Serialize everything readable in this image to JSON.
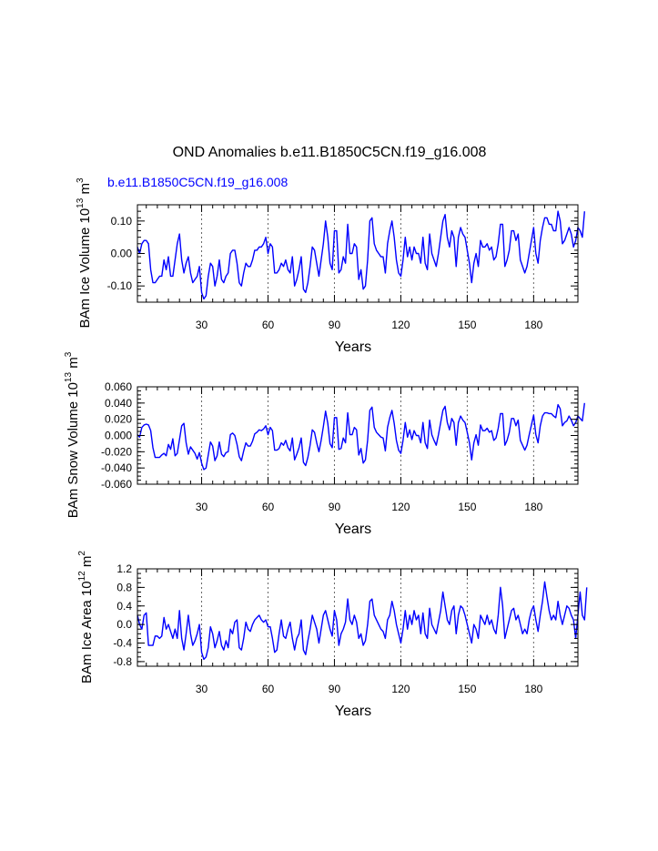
{
  "title": "OND Anomalies b.e11.B1850C5CN.f19_g16.008",
  "subtitle": "b.e11.B1850C5CN.f19_g16.008",
  "colors": {
    "series": "#0000ff",
    "refline": "#666666",
    "axis": "#000000"
  },
  "chart_data": [
    {
      "type": "line",
      "ylabel_main": "BAm Ice Volume 10",
      "ylabel_exp": "13",
      "ylabel_unit": " m",
      "ylabel_unit_exp": "3",
      "xlabel": "Years",
      "xlim": [
        1,
        200
      ],
      "ylim": [
        -0.15,
        0.15
      ],
      "yticks": [
        -0.1,
        0.0,
        0.1
      ],
      "ytick_labels": [
        "-0.10",
        "0.00",
        "0.10"
      ],
      "yminor_step": 0.02,
      "xticks": [
        30,
        60,
        90,
        120,
        150,
        180
      ],
      "xtick_labels": [
        "30",
        "60",
        "90",
        "120",
        "150",
        "180"
      ],
      "refline_x": [
        30,
        60,
        90,
        120,
        150,
        180
      ],
      "series": [
        {
          "name": "Ice Volume",
          "values": [
            0.02,
            0.0,
            0.03,
            0.04,
            0.04,
            0.03,
            -0.05,
            -0.09,
            -0.09,
            -0.08,
            -0.07,
            -0.07,
            -0.02,
            -0.05,
            -0.01,
            -0.07,
            -0.07,
            -0.02,
            0.03,
            0.06,
            -0.02,
            -0.06,
            -0.03,
            -0.01,
            -0.06,
            -0.09,
            -0.08,
            -0.07,
            -0.04,
            -0.12,
            -0.14,
            -0.13,
            -0.07,
            -0.03,
            -0.04,
            -0.1,
            -0.07,
            -0.02,
            -0.08,
            -0.09,
            -0.07,
            -0.06,
            0.0,
            0.01,
            0.01,
            -0.03,
            -0.09,
            -0.1,
            -0.06,
            -0.03,
            -0.04,
            -0.04,
            -0.02,
            0.01,
            0.01,
            0.02,
            0.02,
            0.03,
            0.05,
            0.0,
            0.03,
            0.02,
            -0.06,
            -0.06,
            -0.05,
            -0.03,
            -0.04,
            -0.02,
            -0.05,
            -0.06,
            -0.01,
            -0.1,
            -0.08,
            -0.05,
            -0.01,
            -0.11,
            -0.12,
            -0.09,
            -0.04,
            0.02,
            0.01,
            -0.03,
            -0.07,
            -0.02,
            0.03,
            0.1,
            0.05,
            -0.03,
            -0.05,
            0.07,
            0.07,
            -0.06,
            -0.05,
            -0.01,
            -0.03,
            0.09,
            0.0,
            0.0,
            0.03,
            0.02,
            -0.08,
            -0.05,
            -0.11,
            -0.1,
            -0.02,
            0.1,
            0.11,
            0.03,
            0.01,
            0.0,
            -0.01,
            -0.01,
            -0.06,
            0.03,
            0.07,
            0.1,
            0.05,
            -0.02,
            -0.06,
            -0.07,
            -0.02,
            0.05,
            -0.01,
            0.02,
            -0.02,
            0.02,
            0.0,
            0.0,
            -0.03,
            0.05,
            -0.03,
            -0.05,
            0.06,
            0.0,
            -0.02,
            -0.04,
            0.0,
            0.05,
            0.1,
            0.12,
            0.05,
            0.02,
            0.07,
            0.05,
            -0.04,
            0.05,
            0.08,
            0.06,
            0.05,
            0.01,
            -0.03,
            -0.09,
            -0.03,
            0.0,
            -0.04,
            0.04,
            0.02,
            0.02,
            0.03,
            0.01,
            0.02,
            -0.02,
            -0.01,
            0.03,
            0.09,
            0.09,
            -0.04,
            -0.02,
            0.01,
            0.07,
            0.07,
            0.04,
            0.06,
            -0.02,
            -0.04,
            -0.06,
            -0.04,
            0.0,
            0.04,
            0.08,
            0.0,
            -0.03,
            0.04,
            0.08,
            0.11,
            0.11,
            0.09,
            0.09,
            0.07,
            0.07,
            0.13,
            0.1,
            0.03,
            0.04,
            0.06,
            0.08,
            0.06,
            0.02,
            0.04,
            0.08,
            0.07,
            0.05,
            0.13
          ]
        }
      ]
    },
    {
      "type": "line",
      "ylabel_main": "BAm Snow Volume 10",
      "ylabel_exp": "13",
      "ylabel_unit": " m",
      "ylabel_unit_exp": "3",
      "xlabel": "Years",
      "xlim": [
        1,
        200
      ],
      "ylim": [
        -0.06,
        0.06
      ],
      "yticks": [
        -0.06,
        -0.04,
        -0.02,
        0.0,
        0.02,
        0.04,
        0.06
      ],
      "ytick_labels": [
        "-0.060",
        "-0.040",
        "-0.020",
        "0.000",
        "0.020",
        "0.040",
        "0.060"
      ],
      "yminor_step": 0.005,
      "xticks": [
        30,
        60,
        90,
        120,
        150,
        180
      ],
      "xtick_labels": [
        "30",
        "60",
        "90",
        "120",
        "150",
        "180"
      ],
      "refline_x": [
        30,
        60,
        90,
        120,
        150,
        180
      ],
      "series": [
        {
          "name": "Snow Volume",
          "values": [
            0.001,
            -0.002,
            0.01,
            0.013,
            0.014,
            0.013,
            0.006,
            -0.015,
            -0.027,
            -0.027,
            -0.027,
            -0.024,
            -0.022,
            -0.025,
            -0.011,
            -0.017,
            -0.004,
            -0.025,
            -0.022,
            -0.005,
            0.012,
            0.015,
            -0.009,
            -0.023,
            -0.014,
            -0.018,
            -0.022,
            -0.029,
            -0.021,
            -0.034,
            -0.042,
            -0.04,
            -0.024,
            -0.008,
            -0.013,
            -0.031,
            -0.025,
            -0.008,
            -0.023,
            -0.026,
            -0.021,
            -0.02,
            0.001,
            0.003,
            0.0,
            -0.011,
            -0.026,
            -0.031,
            -0.019,
            -0.009,
            -0.013,
            -0.013,
            -0.007,
            0.002,
            0.004,
            0.007,
            0.006,
            0.008,
            0.012,
            0.001,
            0.01,
            0.006,
            -0.018,
            -0.018,
            -0.016,
            -0.009,
            -0.012,
            -0.006,
            -0.015,
            -0.019,
            -0.003,
            -0.03,
            -0.023,
            -0.015,
            -0.003,
            -0.033,
            -0.037,
            -0.027,
            -0.012,
            0.007,
            0.004,
            -0.009,
            -0.02,
            -0.006,
            0.011,
            0.03,
            0.015,
            -0.01,
            -0.015,
            0.022,
            0.022,
            -0.017,
            -0.016,
            -0.003,
            -0.009,
            0.028,
            0.001,
            0.001,
            0.01,
            0.007,
            -0.024,
            -0.016,
            -0.034,
            -0.03,
            -0.006,
            0.031,
            0.035,
            0.01,
            0.004,
            0.001,
            -0.002,
            -0.003,
            -0.019,
            0.01,
            0.022,
            0.031,
            0.015,
            -0.006,
            -0.018,
            -0.022,
            -0.006,
            0.016,
            -0.002,
            0.007,
            -0.005,
            0.006,
            0.0,
            0.0,
            -0.009,
            0.016,
            -0.009,
            -0.016,
            0.019,
            0.001,
            -0.006,
            -0.012,
            0.001,
            0.016,
            0.031,
            0.036,
            0.016,
            0.007,
            0.021,
            0.016,
            -0.012,
            0.016,
            0.024,
            0.019,
            0.016,
            0.004,
            -0.009,
            -0.03,
            -0.009,
            0.001,
            -0.012,
            0.013,
            0.006,
            0.006,
            0.009,
            0.004,
            0.006,
            -0.006,
            -0.003,
            0.009,
            0.027,
            0.027,
            -0.012,
            -0.006,
            0.004,
            0.021,
            0.021,
            0.012,
            0.019,
            -0.006,
            -0.012,
            -0.018,
            -0.012,
            0.001,
            0.013,
            0.025,
            0.001,
            -0.009,
            0.012,
            0.024,
            0.028,
            0.028,
            0.027,
            0.027,
            0.024,
            0.022,
            0.038,
            0.033,
            0.012,
            0.016,
            0.018,
            0.024,
            0.019,
            0.012,
            0.016,
            0.024,
            0.021,
            0.018,
            0.04
          ]
        }
      ]
    },
    {
      "type": "line",
      "ylabel_main": "BAm Ice Area 10",
      "ylabel_exp": "12",
      "ylabel_unit": " m",
      "ylabel_unit_exp": "2",
      "xlabel": "Years",
      "xlim": [
        1,
        200
      ],
      "ylim": [
        -0.9,
        1.2
      ],
      "yticks": [
        -0.8,
        -0.4,
        0.0,
        0.4,
        0.8,
        1.2
      ],
      "ytick_labels": [
        "-0.8",
        "-0.4",
        "0.0",
        "0.4",
        "0.8",
        "1.2"
      ],
      "yminor_step": 0.1,
      "xticks": [
        30,
        60,
        90,
        120,
        150,
        180
      ],
      "xtick_labels": [
        "30",
        "60",
        "90",
        "120",
        "150",
        "180"
      ],
      "refline_x": [
        30,
        60,
        90,
        120,
        150,
        180
      ],
      "series": [
        {
          "name": "Ice Area",
          "values": [
            0.2,
            0.0,
            -0.1,
            0.2,
            0.25,
            -0.45,
            -0.45,
            -0.45,
            -0.25,
            -0.25,
            -0.3,
            -0.25,
            0.15,
            -0.1,
            0.0,
            -0.15,
            -0.3,
            -0.1,
            -0.3,
            0.3,
            -0.3,
            -0.55,
            -0.2,
            0.2,
            -0.2,
            -0.45,
            -0.35,
            -0.2,
            0.0,
            -0.6,
            -0.75,
            -0.7,
            -0.5,
            -0.05,
            -0.2,
            -0.5,
            -0.35,
            -0.15,
            -0.45,
            -0.55,
            -0.35,
            -0.5,
            -0.1,
            -0.2,
            0.05,
            0.1,
            -0.5,
            -0.55,
            -0.3,
            0.05,
            -0.1,
            -0.15,
            0.0,
            0.1,
            0.15,
            0.2,
            0.1,
            0.05,
            0.1,
            -0.05,
            -0.05,
            -0.3,
            -0.6,
            -0.55,
            -0.2,
            0.1,
            -0.25,
            -0.3,
            -0.1,
            0.05,
            -0.3,
            -0.55,
            -0.3,
            -0.2,
            0.1,
            -0.55,
            -0.65,
            -0.35,
            -0.1,
            0.2,
            0.05,
            -0.1,
            -0.4,
            -0.1,
            0.2,
            0.3,
            0.1,
            -0.1,
            -0.25,
            0.3,
            0.1,
            -0.45,
            -0.2,
            -0.1,
            0.05,
            0.55,
            0.1,
            0.0,
            0.2,
            0.05,
            -0.3,
            -0.2,
            -0.45,
            -0.35,
            0.0,
            0.5,
            0.55,
            0.2,
            0.1,
            0.0,
            -0.1,
            -0.15,
            -0.3,
            0.1,
            0.2,
            0.5,
            0.3,
            0.0,
            -0.2,
            -0.4,
            -0.1,
            0.3,
            -0.1,
            0.2,
            0.0,
            0.3,
            0.1,
            0.2,
            -0.2,
            0.25,
            -0.2,
            -0.3,
            0.35,
            0.0,
            -0.1,
            -0.2,
            0.05,
            0.3,
            0.7,
            0.4,
            0.1,
            0.0,
            0.3,
            0.4,
            -0.2,
            0.2,
            0.4,
            0.35,
            0.2,
            0.0,
            -0.2,
            -0.4,
            0.0,
            -0.1,
            -0.3,
            0.2,
            0.1,
            0.0,
            0.2,
            0.0,
            0.1,
            -0.1,
            -0.2,
            0.2,
            0.8,
            0.4,
            -0.3,
            -0.1,
            0.1,
            0.3,
            0.35,
            0.1,
            0.2,
            0.0,
            -0.2,
            -0.1,
            -0.2,
            0.1,
            0.3,
            0.4,
            0.1,
            -0.15,
            0.2,
            0.5,
            0.92,
            0.6,
            0.3,
            0.1,
            0.2,
            0.1,
            0.5,
            0.2,
            0.0,
            0.2,
            0.4,
            0.35,
            0.2,
            0.1,
            -0.3,
            0.2,
            0.7,
            0.2,
            0.1,
            0.8
          ]
        }
      ]
    }
  ]
}
